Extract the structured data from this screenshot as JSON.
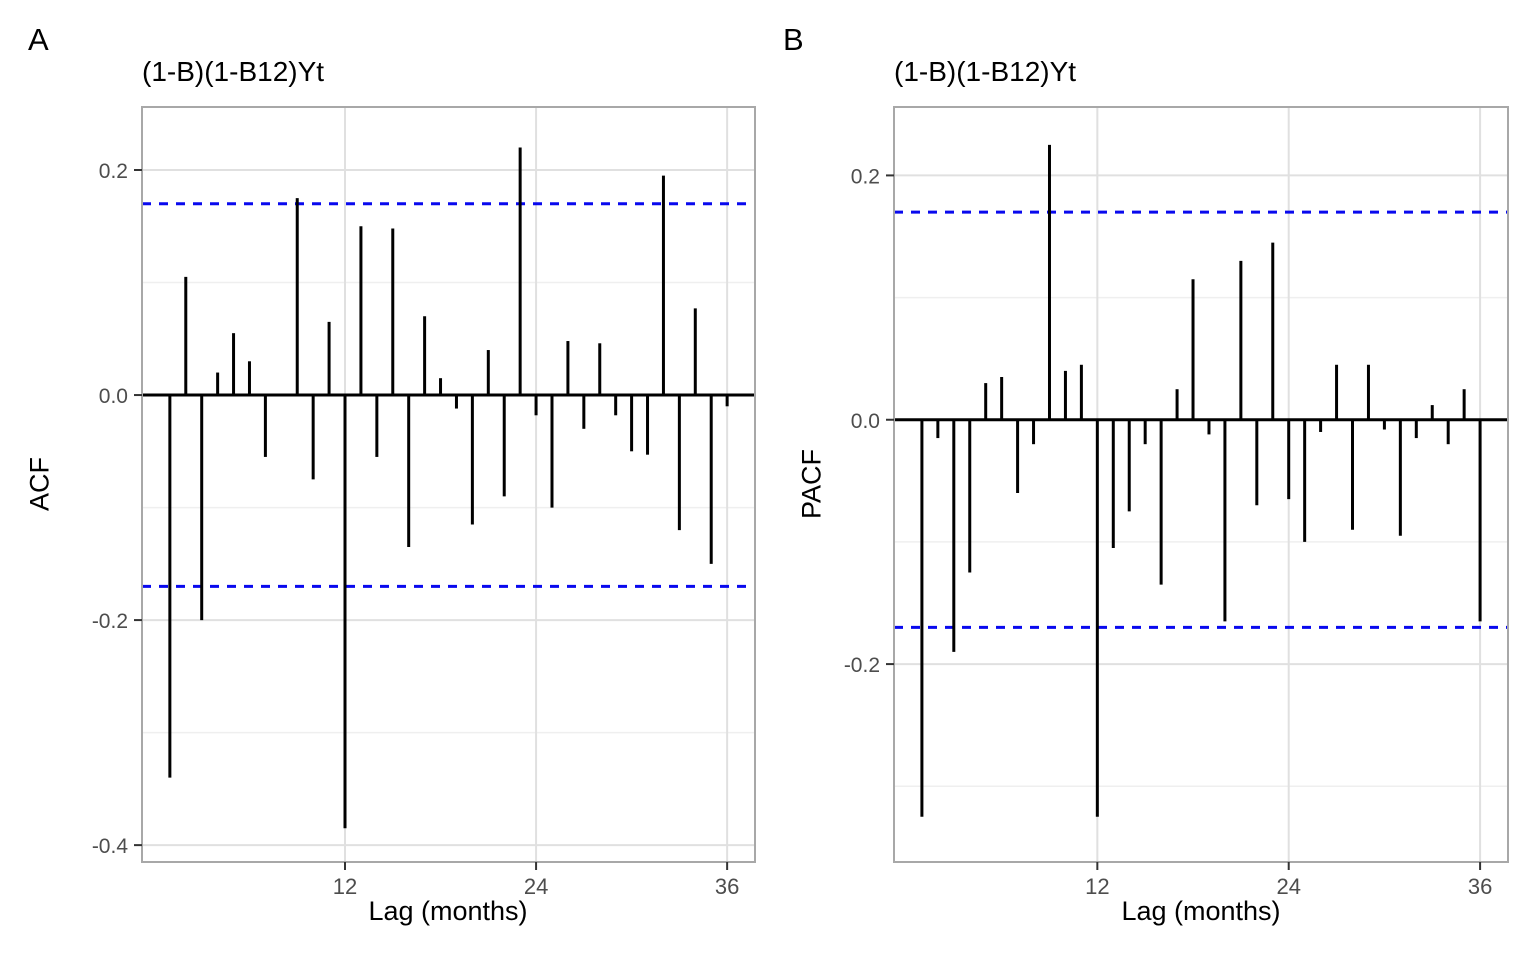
{
  "figure": {
    "background": "#ffffff",
    "bar_color": "#000000",
    "zero_line_color": "#000000",
    "conf_line_color": "#0909ee",
    "grid_major_color": "#e0e0e0",
    "grid_minor_color": "#efefef",
    "panel_border_color": "#a8a8a8",
    "tick_label_color": "#4d4d4d",
    "tick_mark_color": "#333333"
  },
  "chart_data": [
    {
      "type": "bar",
      "subtype": "acf-stem-plot",
      "panel_letter": "A",
      "title": "(1-B)(1-B12)Yt",
      "xlabel": "Lag (months)",
      "ylabel": "ACF",
      "grid": true,
      "legend": "none",
      "conf_bound": 0.17,
      "xlim": [
        -0.75,
        37.75
      ],
      "ylim": [
        -0.415,
        0.256
      ],
      "x_ticks": [
        12,
        24,
        36
      ],
      "x_tick_labels": [
        "12",
        "24",
        "36"
      ],
      "y_ticks": [
        0.2,
        0.0,
        -0.2,
        -0.4
      ],
      "y_tick_labels": [
        "0.2",
        "0.0",
        "-0.2",
        "-0.4"
      ],
      "y_minor_gridlines": [
        0.1,
        -0.1,
        -0.3
      ],
      "x": [
        1,
        2,
        3,
        4,
        5,
        6,
        7,
        8,
        9,
        10,
        11,
        12,
        13,
        14,
        15,
        16,
        17,
        18,
        19,
        20,
        21,
        22,
        23,
        24,
        25,
        26,
        27,
        28,
        29,
        30,
        31,
        32,
        33,
        34,
        35,
        36
      ],
      "values": [
        -0.34,
        0.105,
        -0.2,
        0.02,
        0.055,
        0.03,
        -0.055,
        0.0,
        0.175,
        -0.075,
        0.065,
        -0.385,
        0.15,
        -0.055,
        0.148,
        -0.135,
        0.07,
        0.015,
        -0.012,
        -0.115,
        0.04,
        -0.09,
        0.22,
        -0.018,
        -0.1,
        0.048,
        -0.03,
        0.046,
        -0.018,
        -0.05,
        -0.053,
        0.195,
        -0.12,
        0.077,
        -0.15,
        -0.01
      ]
    },
    {
      "type": "bar",
      "subtype": "acf-stem-plot",
      "panel_letter": "B",
      "title": "(1-B)(1-B12)Yt",
      "xlabel": "Lag (months)",
      "ylabel": "PACF",
      "grid": true,
      "legend": "none",
      "conf_bound": 0.17,
      "xlim": [
        -0.75,
        37.75
      ],
      "ylim": [
        -0.362,
        0.256
      ],
      "x_ticks": [
        12,
        24,
        36
      ],
      "x_tick_labels": [
        "12",
        "24",
        "36"
      ],
      "y_ticks": [
        0.2,
        0.0,
        -0.2
      ],
      "y_tick_labels": [
        "0.2",
        "0.0",
        "-0.2"
      ],
      "y_minor_gridlines": [
        0.1,
        -0.1,
        -0.3
      ],
      "x": [
        1,
        2,
        3,
        4,
        5,
        6,
        7,
        8,
        9,
        10,
        11,
        12,
        13,
        14,
        15,
        16,
        17,
        18,
        19,
        20,
        21,
        22,
        23,
        24,
        25,
        26,
        27,
        28,
        29,
        30,
        31,
        32,
        33,
        34,
        35,
        36
      ],
      "values": [
        -0.325,
        -0.015,
        -0.19,
        -0.125,
        0.03,
        0.035,
        -0.06,
        -0.02,
        0.225,
        0.04,
        0.045,
        -0.325,
        -0.105,
        -0.075,
        -0.02,
        -0.135,
        0.025,
        0.115,
        -0.012,
        -0.165,
        0.13,
        -0.07,
        0.145,
        -0.065,
        -0.1,
        -0.01,
        0.045,
        -0.09,
        0.045,
        -0.008,
        -0.095,
        -0.015,
        0.012,
        -0.02,
        0.025,
        -0.165
      ]
    }
  ]
}
